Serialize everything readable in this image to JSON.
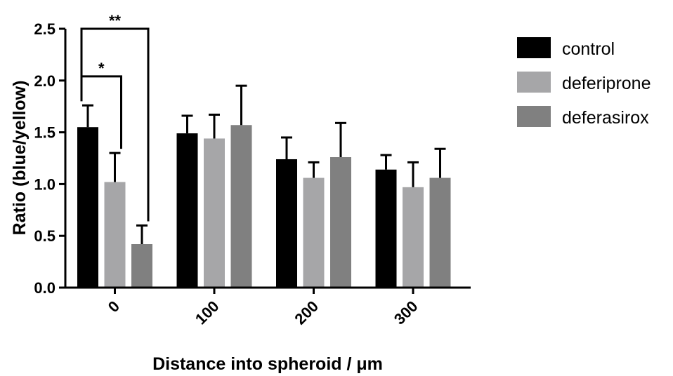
{
  "chart_data": {
    "type": "bar",
    "categories": [
      "0",
      "100",
      "200",
      "300"
    ],
    "series": [
      {
        "name": "control",
        "color": "#000000",
        "values": [
          1.55,
          1.49,
          1.24,
          1.14
        ],
        "errors": [
          0.21,
          0.17,
          0.21,
          0.14
        ]
      },
      {
        "name": "deferiprone",
        "color": "#a6a6a8",
        "values": [
          1.02,
          1.44,
          1.06,
          0.97
        ],
        "errors": [
          0.28,
          0.23,
          0.15,
          0.24
        ]
      },
      {
        "name": "deferasirox",
        "color": "#808080",
        "values": [
          0.42,
          1.57,
          1.26,
          1.06
        ],
        "errors": [
          0.18,
          0.38,
          0.33,
          0.28
        ]
      }
    ],
    "xlabel": "Distance into spheroid / μm",
    "ylabel": "Ratio (blue/yellow)",
    "ylim": [
      0,
      2.5
    ],
    "yticks": [
      "0.0",
      "0.5",
      "1.0",
      "1.5",
      "2.0",
      "2.5"
    ],
    "legend": "right",
    "grid": false,
    "annotations": [
      {
        "label": "*",
        "from": "control",
        "to": "deferiprone",
        "category": "0"
      },
      {
        "label": "**",
        "from": "control",
        "to": "deferasirox",
        "category": "0"
      }
    ]
  }
}
